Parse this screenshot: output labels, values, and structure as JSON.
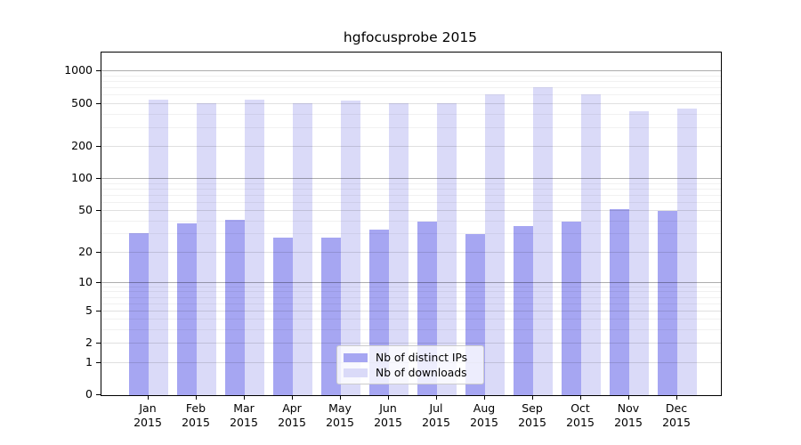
{
  "title": "hgfocusprobe 2015",
  "chart_data": {
    "type": "bar",
    "title": "hgfocusprobe 2015",
    "categories": [
      "Jan",
      "Feb",
      "Mar",
      "Apr",
      "May",
      "Jun",
      "Jul",
      "Aug",
      "Sep",
      "Oct",
      "Nov",
      "Dec"
    ],
    "year": "2015",
    "series": [
      {
        "name": "Nb of distinct IPs",
        "color": "#a6a6f2",
        "values": [
          31,
          38,
          41,
          28,
          28,
          33,
          40,
          30,
          36,
          40,
          52,
          50
        ]
      },
      {
        "name": "Nb of downloads",
        "color": "#dadaf8",
        "values": [
          545,
          503,
          545,
          512,
          535,
          503,
          512,
          620,
          712,
          620,
          430,
          450
        ]
      }
    ],
    "xlabel": "",
    "ylabel": "",
    "y_ticks": [
      0,
      1,
      2,
      5,
      10,
      20,
      50,
      100,
      200,
      500,
      1000
    ],
    "y_scale": "log1p",
    "ylim": [
      0,
      1500
    ],
    "grid": true,
    "grid_emphasis_ticks": [
      10,
      100,
      1000
    ],
    "legend_position": "lower center",
    "spine_color": "#000000",
    "background_color": "#ffffff"
  }
}
